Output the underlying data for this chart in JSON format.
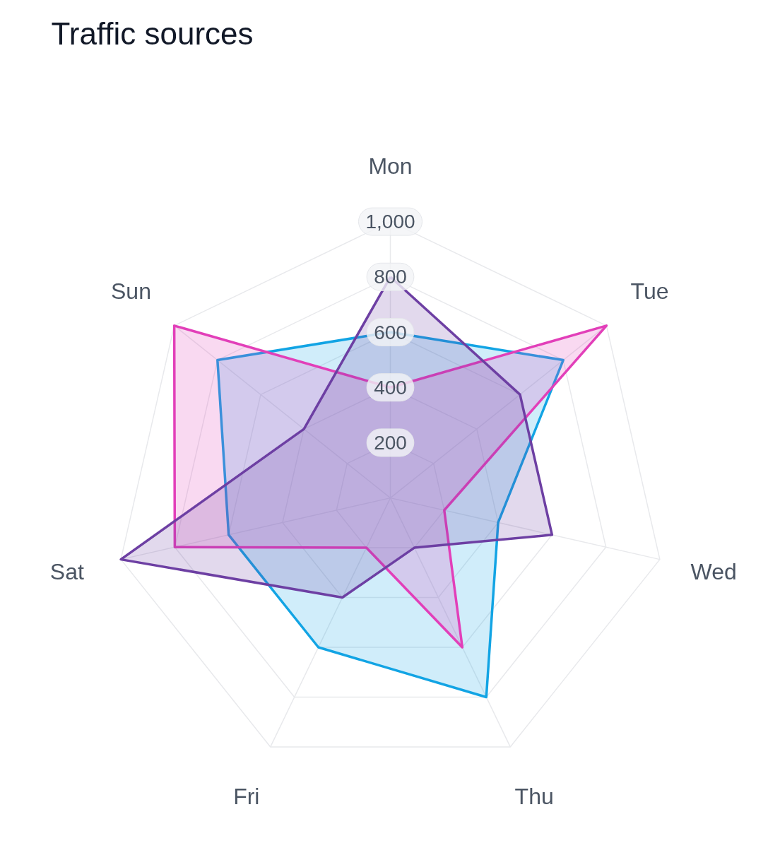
{
  "chart_data": {
    "type": "radar",
    "title": "Traffic sources",
    "categories": [
      "Mon",
      "Tue",
      "Wed",
      "Thu",
      "Fri",
      "Sat",
      "Sun"
    ],
    "ylim": [
      0,
      1000
    ],
    "yticks": [
      200,
      400,
      600,
      800,
      {
        "value": 1000,
        "label": "1,000"
      }
    ],
    "grid": true,
    "series": [
      {
        "color": "#12a4e4",
        "values": [
          600,
          800,
          400,
          800,
          600,
          600,
          800
        ]
      },
      {
        "color": "#e23fb9",
        "values": [
          400,
          1000,
          200,
          600,
          200,
          800,
          1000
        ]
      },
      {
        "color": "#6d3fa3",
        "values": [
          800,
          600,
          600,
          200,
          400,
          1000,
          400
        ]
      }
    ]
  }
}
